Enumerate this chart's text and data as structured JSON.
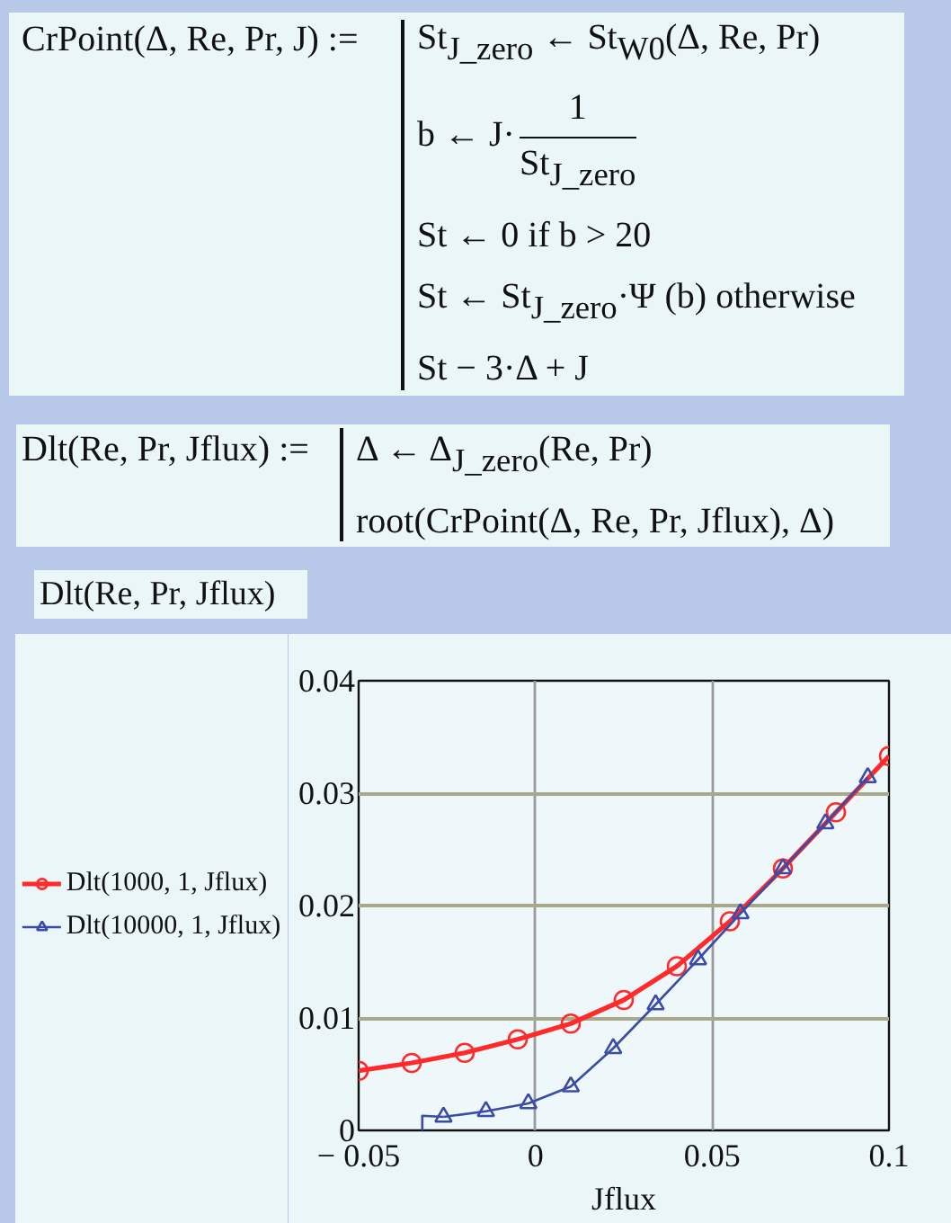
{
  "chart_data": {
    "type": "line",
    "xlabel": "Jflux",
    "annotations": [
      "CrPoint(Δ, Re, Pr, J) :=",
      "St$_{J_zero}$ ← St$_{W0}$(Δ, Re, Pr)",
      "b ← J·",
      "1",
      "St$_{J_zero}$",
      "St ← 0 if b > 20",
      "St ← St$_{J_zero}$·Ψ (b) otherwise",
      "St − 3·Δ + J",
      "Dlt(Re, Pr, Jflux) :=",
      "Δ ← Δ$_{J_zero}$(Re, Pr)",
      "root(CrPoint(Δ, Re, Pr, Jflux), Δ)",
      "Dlt(Re, Pr, Jflux)"
    ],
    "xlim": [
      -0.05,
      0.1
    ],
    "xticks": [
      {
        "value": -0.05,
        "label": "− 0.05"
      },
      0,
      0.05,
      0.1
    ],
    "ylim": [
      0,
      0.04
    ],
    "yticks": [
      0,
      0.01,
      0.02,
      0.03,
      0.04
    ],
    "grid": true,
    "legend": "left",
    "line_style": "solid",
    "series": [
      {
        "name": "Dlt(1000, 1, Jflux)",
        "color": "#ff2a2a",
        "marker": "circle",
        "x": [
          -0.05,
          -0.035,
          -0.02,
          -0.005,
          0.01,
          0.025,
          0.04,
          0.055,
          0.07,
          0.085,
          0.1
        ],
        "values": [
          0.0053,
          0.006,
          0.0069,
          0.0081,
          0.0095,
          0.0116,
          0.0146,
          0.0186,
          0.0233,
          0.0283,
          0.0333
        ]
      },
      {
        "name": "Dlt(10000, 1, Jflux)",
        "color": "#3b4ba8",
        "marker": "triangle",
        "x": [
          -0.026,
          -0.014,
          -0.002,
          0.01,
          0.022,
          0.034,
          0.046,
          0.058,
          0.07,
          0.082,
          0.094
        ],
        "values": [
          0.0012,
          0.0017,
          0.0024,
          0.0039,
          0.0073,
          0.0112,
          0.0152,
          0.0193,
          0.0233,
          0.0273,
          0.0314
        ]
      },
      {
        "color": "#3b4ba8",
        "marker": "none",
        "x": [
          -0.032,
          -0.032,
          -0.026
        ],
        "values": [
          0,
          0.0013,
          0.0012
        ]
      }
    ]
  }
}
